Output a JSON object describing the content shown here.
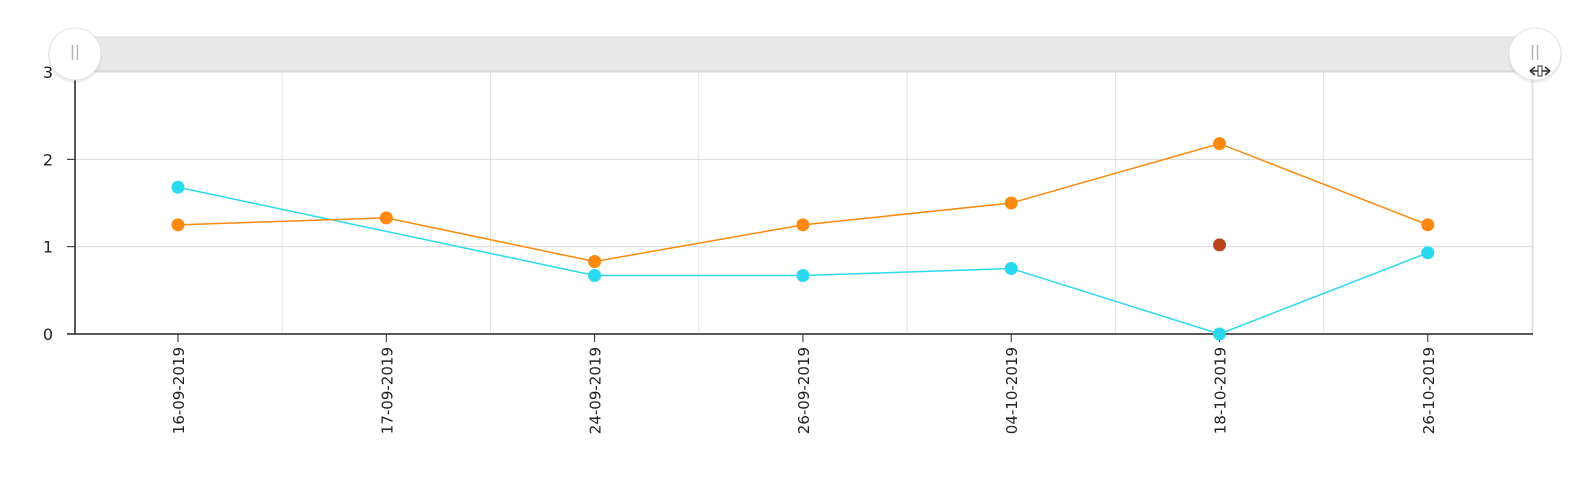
{
  "chart_data": {
    "type": "line",
    "categories": [
      "16-09-2019",
      "17-09-2019",
      "24-09-2019",
      "26-09-2019",
      "04-10-2019",
      "18-10-2019",
      "26-10-2019"
    ],
    "series": [
      {
        "color": "#2bd9ee",
        "values": [
          1.68,
          null,
          0.67,
          0.67,
          0.75,
          0.0,
          0.93
        ]
      },
      {
        "color": "#fb8a0f",
        "values": [
          1.25,
          1.33,
          0.83,
          1.25,
          1.5,
          2.18,
          1.25
        ]
      }
    ],
    "extra_points": [
      {
        "category": "18-10-2019",
        "value": 1.02,
        "color": "#b8441b"
      }
    ],
    "y_ticks": [
      0,
      1,
      2,
      3
    ],
    "ylim": [
      0,
      3
    ],
    "grid": true,
    "xlabel": "",
    "ylabel": "",
    "title": ""
  },
  "navigator": {
    "left_handle_icon": "drag-handle-icon",
    "right_handle_icon": "drag-handle-icon",
    "cursor_icon": "resize-cursor-icon"
  }
}
